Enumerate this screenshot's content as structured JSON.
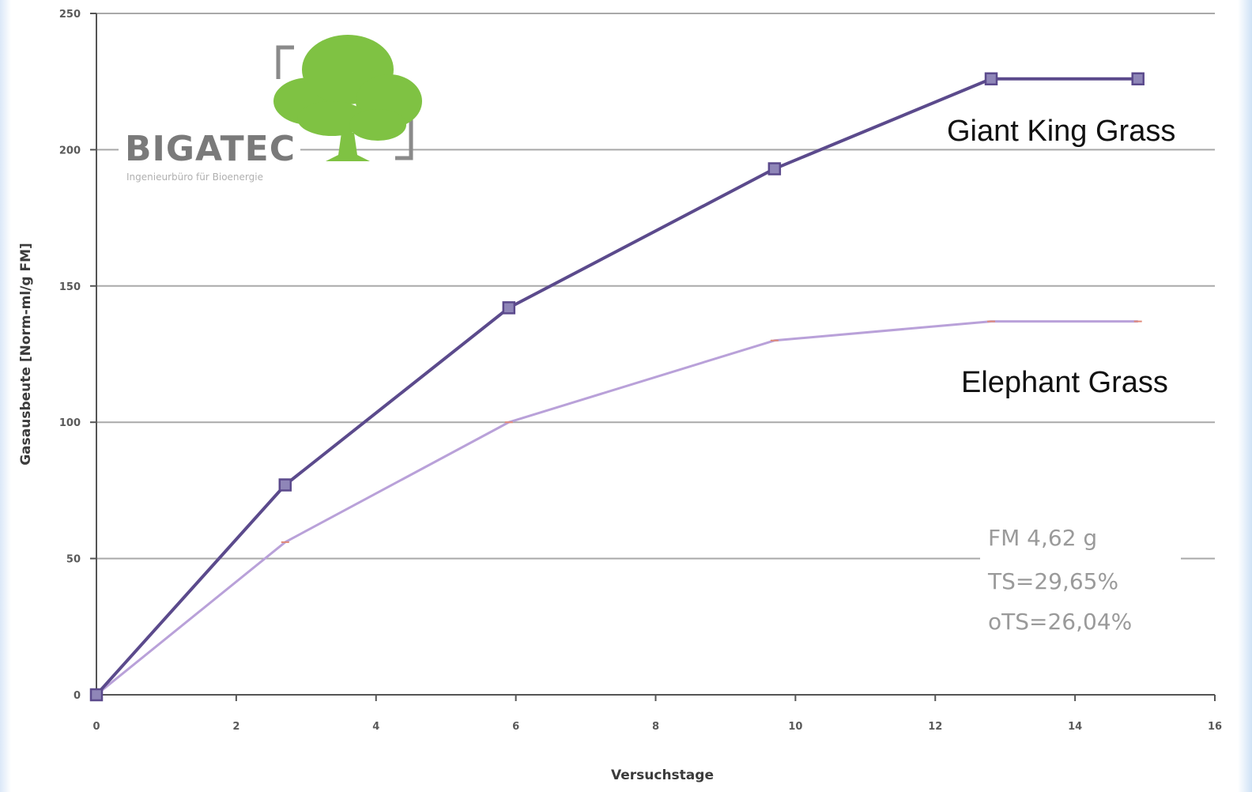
{
  "chart_data": {
    "type": "line",
    "xlabel": "Versuchstage",
    "ylabel": "Gasausbeute [Norm-ml/g FM]",
    "xlim": [
      0,
      16
    ],
    "ylim": [
      0,
      250
    ],
    "x_ticks": [
      0,
      2,
      4,
      6,
      8,
      10,
      12,
      14,
      16
    ],
    "y_ticks": [
      0,
      50,
      100,
      150,
      200,
      250
    ],
    "grid": "horizontal",
    "series": [
      {
        "name": "Giant King Grass",
        "color": "#5b4a8c",
        "marker": "square",
        "x": [
          0,
          2.7,
          5.9,
          9.7,
          12.8,
          14.9
        ],
        "y": [
          0,
          77,
          142,
          193,
          226,
          226
        ]
      },
      {
        "name": "Elephant Grass",
        "color": "#b9a1d9",
        "marker": "dash",
        "x": [
          0,
          2.7,
          5.9,
          9.7,
          12.8,
          14.9
        ],
        "y": [
          0,
          56,
          100,
          130,
          137,
          137
        ]
      }
    ],
    "annotations": [
      "FM 4,62 g",
      "TS=29,65%",
      "oTS=26,04%"
    ]
  },
  "logo": {
    "name": "BIGATEC",
    "tagline": "Ingenieurbüro für Bioenergie"
  },
  "colors": {
    "axis": "#555555",
    "grid": "#a9a9a9",
    "logo_tree": "#7fc243",
    "logo_frame": "#8a8a8a"
  }
}
